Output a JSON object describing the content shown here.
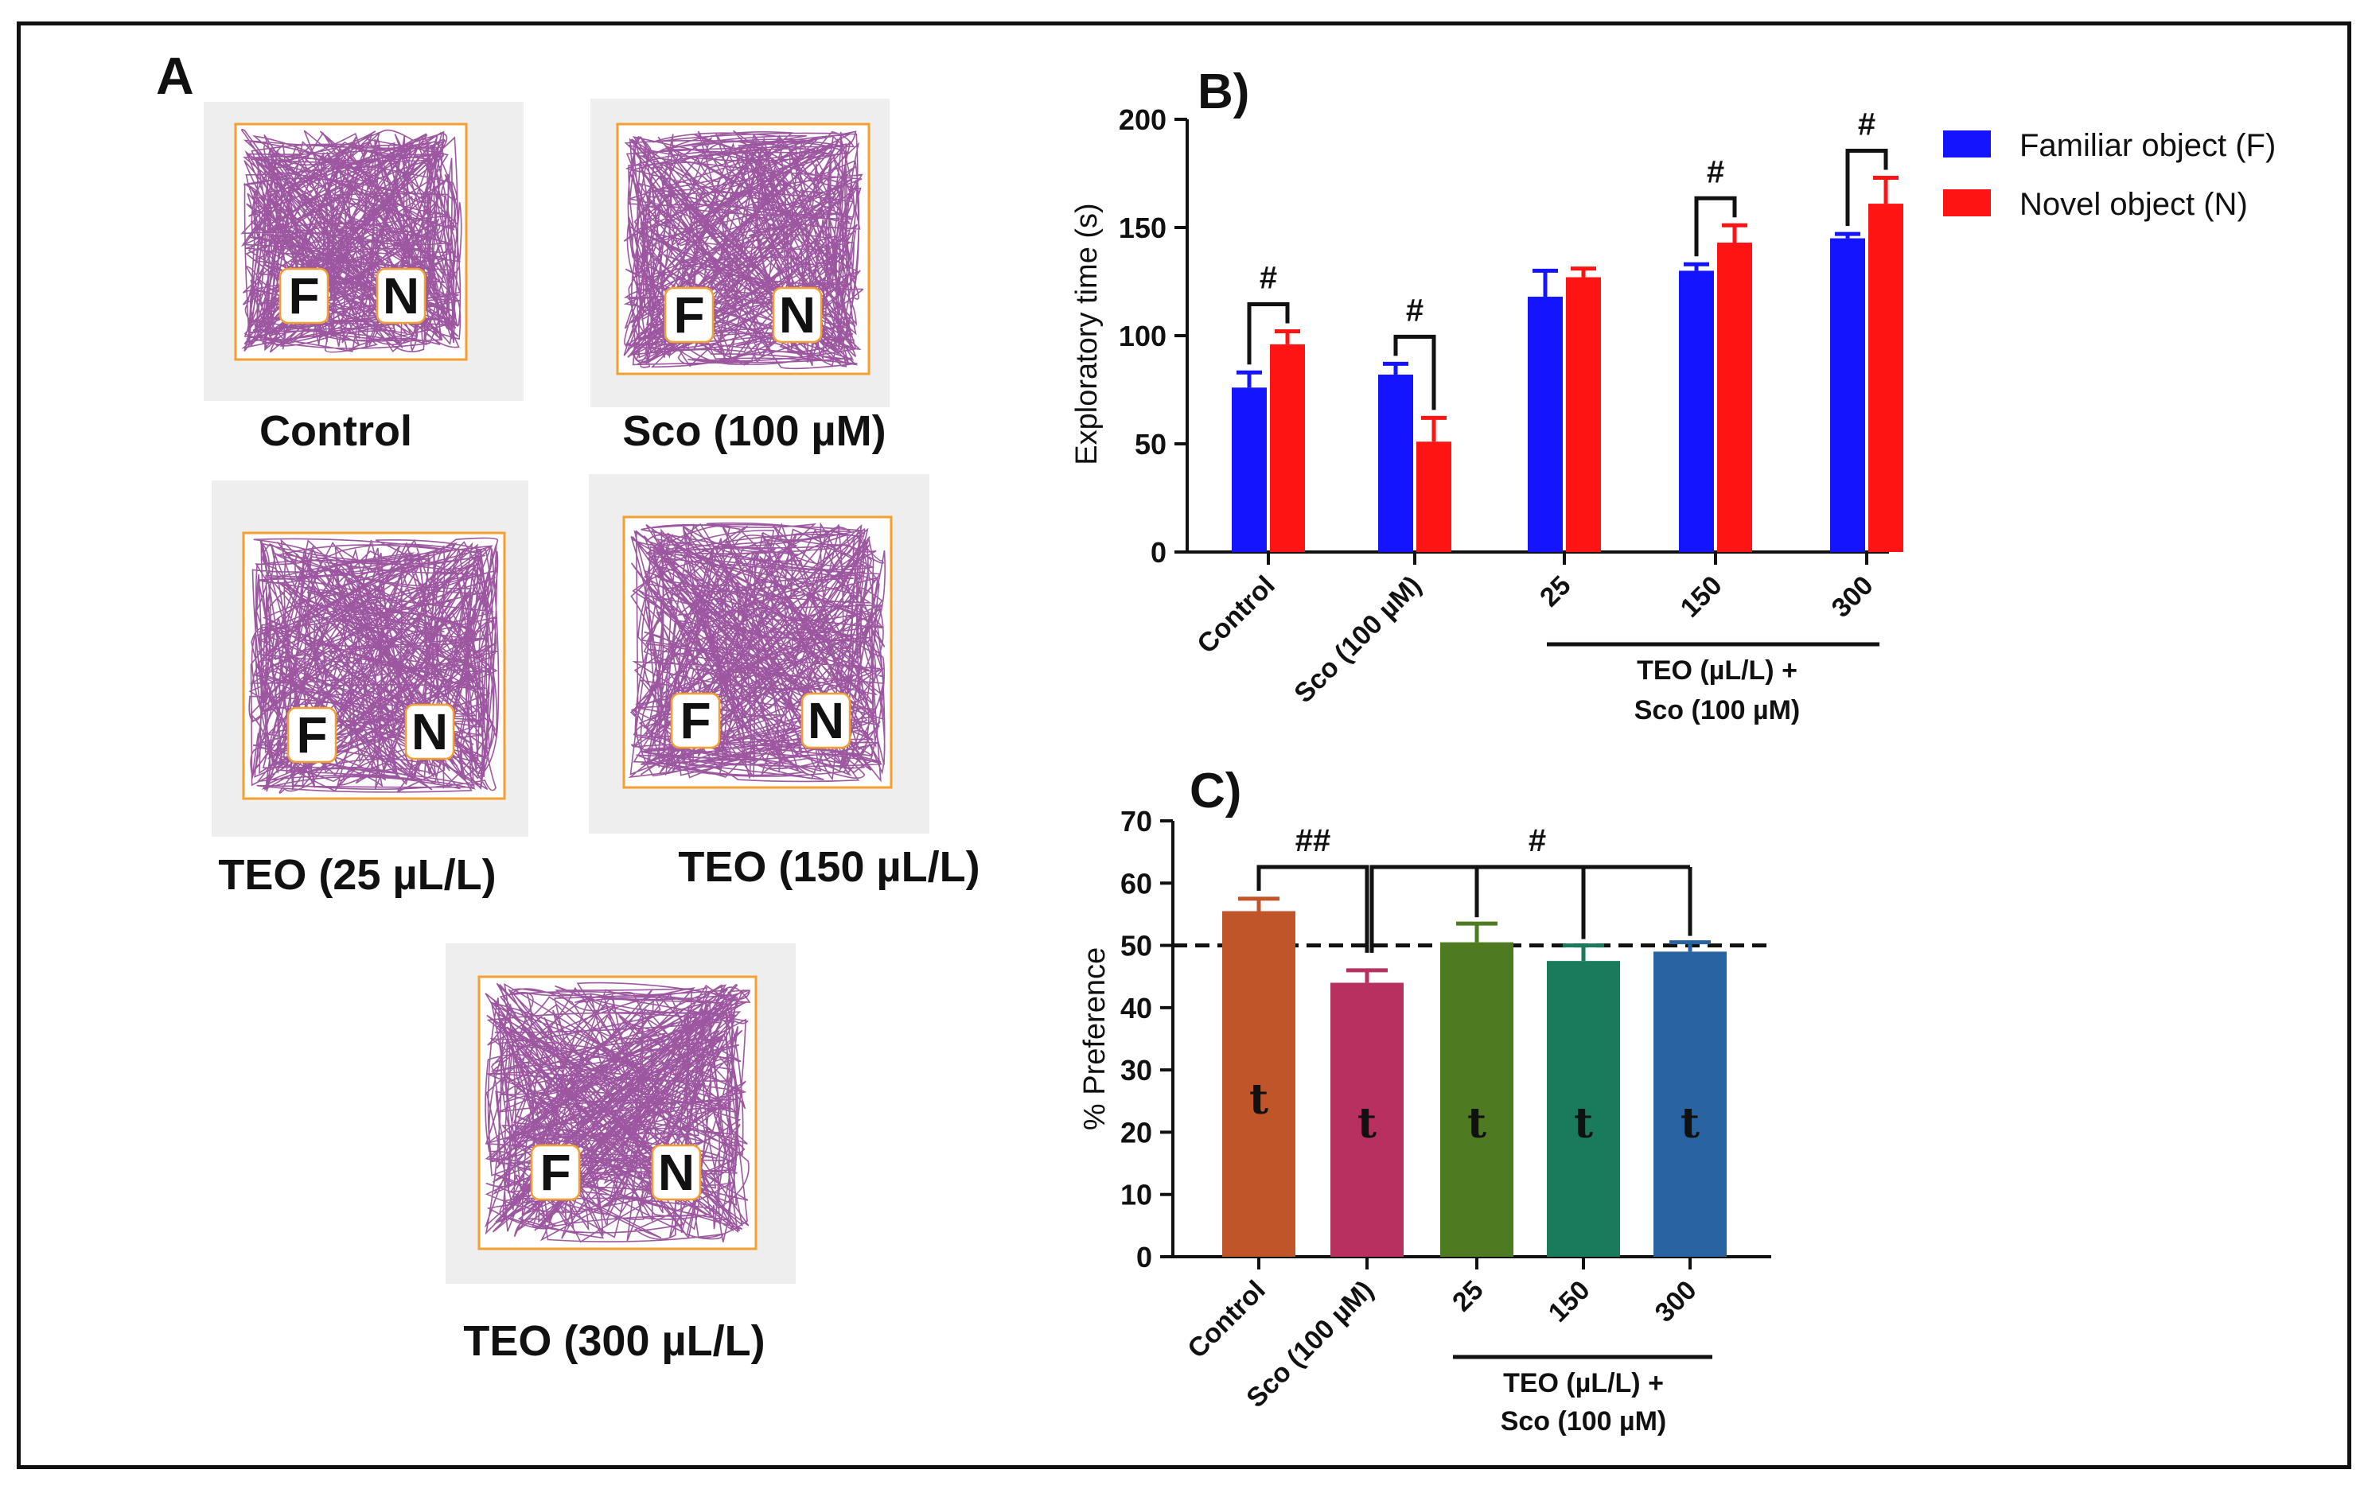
{
  "panel_a": {
    "label": "A",
    "arenas": [
      {
        "caption": "Control",
        "familiar_letter": "F",
        "novel_letter": "N"
      },
      {
        "caption": "Sco (100 µM)",
        "familiar_letter": "F",
        "novel_letter": "N"
      },
      {
        "caption": "TEO (25 µL/L)",
        "familiar_letter": "F",
        "novel_letter": "N"
      },
      {
        "caption": "TEO (150 µL/L)",
        "familiar_letter": "F",
        "novel_letter": "N"
      },
      {
        "caption": "TEO (300 µL/L)",
        "familiar_letter": "F",
        "novel_letter": "N"
      }
    ],
    "colors": {
      "background": "#eeeeee",
      "border": "#f4a030",
      "track": "#8b3a8f",
      "object_fill": "#ffffff"
    }
  },
  "chart_data": [
    {
      "type": "bar",
      "panel_label": "B)",
      "ylabel": "Exploratory time (s)",
      "ylim": [
        0,
        200
      ],
      "yticks": [
        0,
        50,
        100,
        150,
        200
      ],
      "categories": [
        "Control",
        "Sco (100 µM)",
        "25",
        "150",
        "300"
      ],
      "group_label_line1": "TEO (µL/L) +",
      "group_label_line2": "Sco (100 µM)",
      "series": [
        {
          "name": "Familiar object (F)",
          "color": "#1414ff",
          "values": [
            76,
            82,
            118,
            130,
            145
          ],
          "errors": [
            7,
            5,
            12,
            3,
            2
          ]
        },
        {
          "name": "Novel object (N)",
          "color": "#ff1414",
          "values": [
            96,
            51,
            127,
            143,
            161
          ],
          "errors": [
            6,
            11,
            4,
            8,
            12
          ]
        }
      ],
      "significance": [
        {
          "category": 0,
          "label": "#"
        },
        {
          "category": 1,
          "label": "#"
        },
        {
          "category": 3,
          "label": "#"
        },
        {
          "category": 4,
          "label": "#"
        }
      ],
      "legend": "top-right"
    },
    {
      "type": "bar",
      "panel_label": "C)",
      "ylabel": "% Preference",
      "ylim": [
        0,
        70
      ],
      "yticks": [
        0,
        10,
        20,
        30,
        40,
        50,
        60,
        70
      ],
      "reference_line": 50,
      "categories": [
        "Control",
        "Sco (100 µM)",
        "25",
        "150",
        "300"
      ],
      "group_label_line1": "TEO (µL/L) +",
      "group_label_line2": "Sco (100 µM)",
      "values": [
        55.5,
        44,
        50.5,
        47.5,
        49
      ],
      "errors": [
        2,
        2,
        3,
        2.5,
        1.5
      ],
      "colors": [
        "#c0552a",
        "#b83060",
        "#4e7a22",
        "#1a7a5c",
        "#2a64a0"
      ],
      "bar_labels": [
        "t",
        "t",
        "t",
        "t",
        "t"
      ],
      "significance": [
        {
          "from": 0,
          "to": 1,
          "label": "##"
        },
        {
          "from": 1,
          "to": [
            2,
            3,
            4
          ],
          "label": "#"
        }
      ]
    }
  ]
}
